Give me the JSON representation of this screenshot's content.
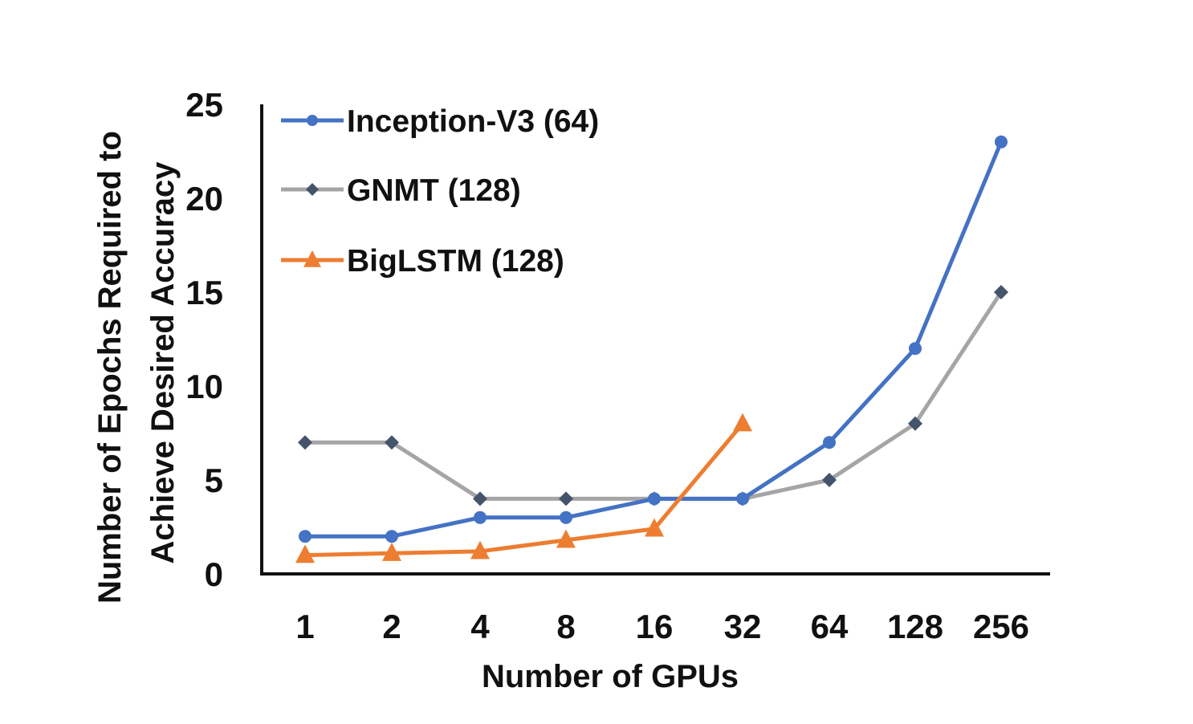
{
  "chart_data": {
    "type": "line",
    "title": "",
    "xlabel": "Number of GPUs",
    "ylabel_lines": [
      "Number of Epochs Required to",
      "Achieve Desired Accuracy"
    ],
    "categories": [
      "1",
      "2",
      "4",
      "8",
      "16",
      "32",
      "64",
      "128",
      "256"
    ],
    "y_ticks": [
      "0",
      "5",
      "10",
      "15",
      "20",
      "25"
    ],
    "ylim": [
      0,
      25
    ],
    "grid": false,
    "legend_position": "top-left",
    "series": [
      {
        "name": "Inception-V3 (64)",
        "color": "#4472c4",
        "marker": "circle",
        "values": [
          2,
          2,
          3,
          3,
          4,
          4,
          7,
          12,
          23
        ]
      },
      {
        "name": "GNMT (128)",
        "color": "#a5a5a5",
        "marker_color": "#44546a",
        "marker": "diamond",
        "values": [
          7,
          7,
          4,
          4,
          4,
          4,
          5,
          8,
          15
        ]
      },
      {
        "name": "BigLSTM (128)",
        "color": "#ed7d31",
        "marker": "triangle",
        "values": [
          1,
          1.1,
          1.2,
          1.8,
          2.4,
          8,
          null,
          null,
          null
        ]
      }
    ]
  }
}
